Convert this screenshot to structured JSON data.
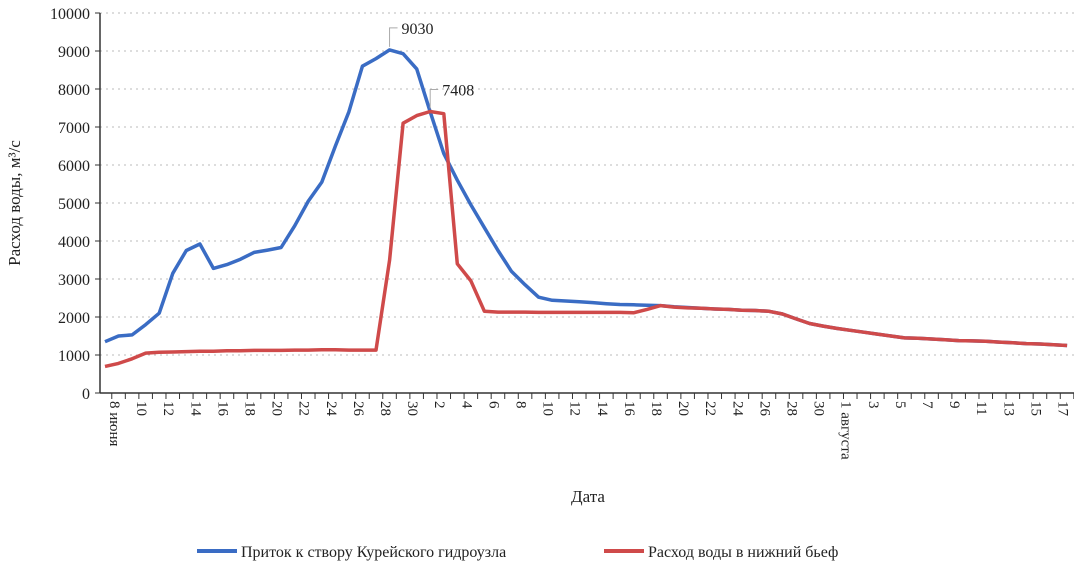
{
  "chart_data": {
    "type": "line",
    "title": "",
    "xlabel": "Дата",
    "ylabel": "Расход воды, м³/с",
    "ylim": [
      0,
      10000
    ],
    "yticks": [
      0,
      1000,
      2000,
      3000,
      4000,
      5000,
      6000,
      7000,
      8000,
      9000,
      10000
    ],
    "grid": "horizontal dotted",
    "legend_position": "bottom",
    "x_start_date": "8 июня",
    "x": [
      "8 июня",
      "9",
      "10",
      "11",
      "12",
      "13",
      "14",
      "15",
      "16",
      "17",
      "18",
      "19",
      "20",
      "21",
      "22",
      "23",
      "24",
      "25",
      "26",
      "27",
      "28",
      "29",
      "30",
      "1",
      "2",
      "3",
      "4",
      "5",
      "6",
      "7",
      "8",
      "9",
      "10",
      "11",
      "12",
      "13",
      "14",
      "15",
      "16",
      "17",
      "18",
      "19",
      "20",
      "21",
      "22",
      "23",
      "24",
      "25",
      "26",
      "27",
      "28",
      "29",
      "30",
      "31",
      "1 августа",
      "2",
      "3",
      "4",
      "5",
      "6",
      "7",
      "8",
      "9",
      "10",
      "11",
      "12",
      "13",
      "14",
      "15",
      "16",
      "17",
      "18"
    ],
    "xtick_labels": [
      "8 июня",
      "10",
      "12",
      "14",
      "16",
      "18",
      "20",
      "22",
      "24",
      "26",
      "28",
      "30",
      "2",
      "4",
      "6",
      "8",
      "10",
      "12",
      "14",
      "16",
      "18",
      "20",
      "22",
      "24",
      "26",
      "28",
      "30",
      "1 августа",
      "3",
      "5",
      "7",
      "9",
      "11",
      "13",
      "15",
      "17"
    ],
    "series": [
      {
        "name": "Приток к створу Курейского гидроузла",
        "color": "#3a6cc4",
        "values": [
          1350,
          1500,
          1530,
          1800,
          2100,
          3150,
          3750,
          3920,
          3280,
          3380,
          3520,
          3700,
          3760,
          3830,
          4400,
          5050,
          5550,
          6500,
          7400,
          8600,
          8800,
          9030,
          8930,
          8530,
          7400,
          6300,
          5600,
          4950,
          4350,
          3750,
          3200,
          2850,
          2520,
          2440,
          2420,
          2400,
          2380,
          2350,
          2330,
          2320,
          2310,
          2300,
          2270,
          2250,
          2230,
          2210,
          2200,
          2180,
          2170,
          2150,
          2080,
          1950,
          1830,
          1760,
          1700,
          1650,
          1600,
          1550,
          1500,
          1450,
          1440,
          1420,
          1400,
          1380,
          1370,
          1360,
          1340,
          1320,
          1300,
          1290,
          1270,
          1250
        ]
      },
      {
        "name": "Расход воды в нижний бьеф",
        "color": "#cf4a4a",
        "values": [
          700,
          780,
          900,
          1050,
          1070,
          1080,
          1090,
          1100,
          1100,
          1110,
          1110,
          1120,
          1120,
          1120,
          1130,
          1130,
          1140,
          1140,
          1130,
          1130,
          1130,
          3500,
          7100,
          7300,
          7408,
          7350,
          3400,
          2950,
          2150,
          2130,
          2130,
          2130,
          2120,
          2120,
          2120,
          2120,
          2120,
          2120,
          2120,
          2110,
          2200,
          2300,
          2260,
          2240,
          2230,
          2210,
          2200,
          2180,
          2170,
          2150,
          2080,
          1950,
          1830,
          1760,
          1700,
          1650,
          1600,
          1550,
          1500,
          1450,
          1440,
          1420,
          1400,
          1380,
          1370,
          1360,
          1340,
          1320,
          1300,
          1290,
          1270,
          1250
        ]
      }
    ],
    "annotations": [
      {
        "series": 0,
        "x": "29",
        "text": "9030"
      },
      {
        "series": 1,
        "x": "2",
        "text": "7408"
      }
    ]
  }
}
